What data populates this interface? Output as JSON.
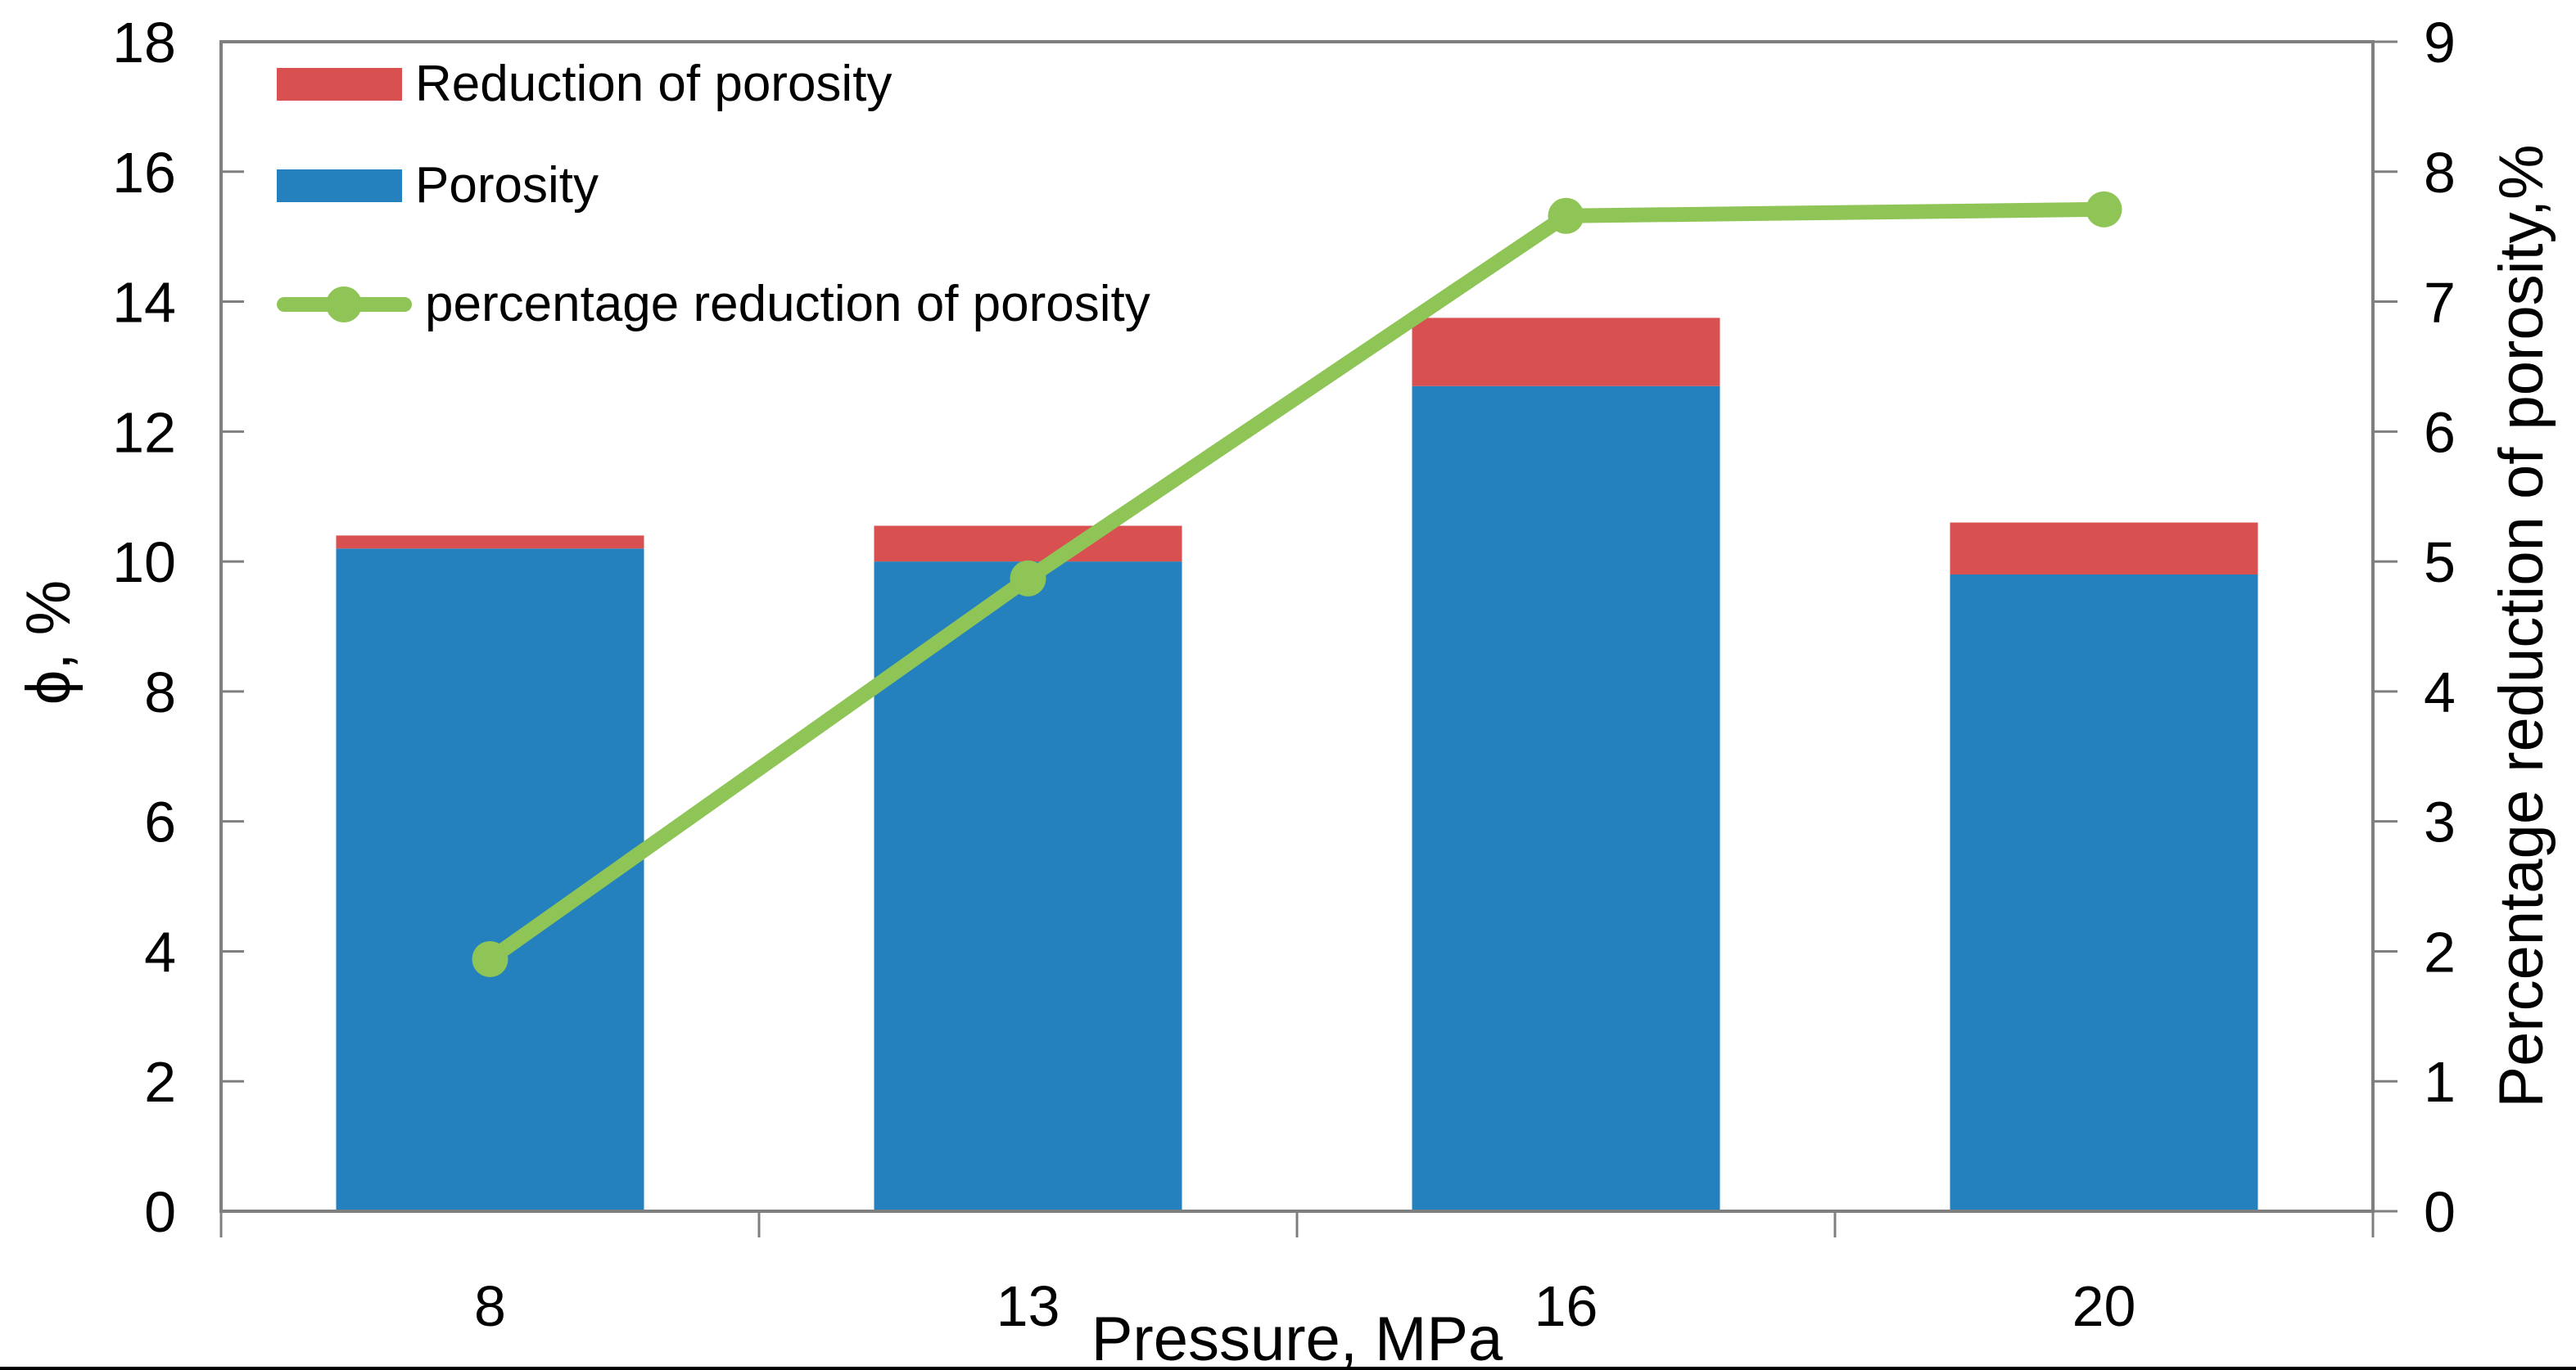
{
  "chart_data": {
    "type": "bar",
    "subtype": "stacked-bars-with-line-overlay",
    "title": "",
    "categories": [
      "8",
      "13",
      "16",
      "20"
    ],
    "x_axis": {
      "title": "Pressure, MPa"
    },
    "left_axis": {
      "title": "ϕ,  %",
      "min": 0,
      "max": 18,
      "tick_step": 2,
      "ticks": [
        "0",
        "2",
        "4",
        "6",
        "8",
        "10",
        "12",
        "14",
        "16",
        "18"
      ]
    },
    "right_axis": {
      "title": "Percentage reduction of porosity,%",
      "min": 0,
      "max": 9,
      "tick_step": 1,
      "ticks": [
        "0",
        "1",
        "2",
        "3",
        "4",
        "5",
        "6",
        "7",
        "8",
        "9"
      ]
    },
    "series": [
      {
        "name": "Reduction of porosity",
        "type": "bar-segment-top",
        "axis": "left",
        "color": "#D85050",
        "values": [
          0.2,
          0.55,
          1.05,
          0.8
        ]
      },
      {
        "name": "Porosity",
        "type": "bar-segment-base",
        "axis": "left",
        "color": "#2481BE",
        "values": [
          10.2,
          10.0,
          12.7,
          9.8
        ]
      },
      {
        "name": "percentage reduction of porosity",
        "type": "line",
        "axis": "right",
        "color": "#8FC556",
        "values": [
          1.94,
          4.87,
          7.66,
          7.71
        ]
      }
    ],
    "stacked_totals": [
      10.4,
      10.55,
      13.75,
      10.6
    ],
    "legend_position": "top-left-inside",
    "grid": false
  },
  "colors": {
    "axis": "#7F7F7F",
    "text": "#000000",
    "background": "#FFFFFF",
    "bar_blue": "#2481BE",
    "bar_red": "#D85050",
    "line_green": "#8FC556"
  }
}
